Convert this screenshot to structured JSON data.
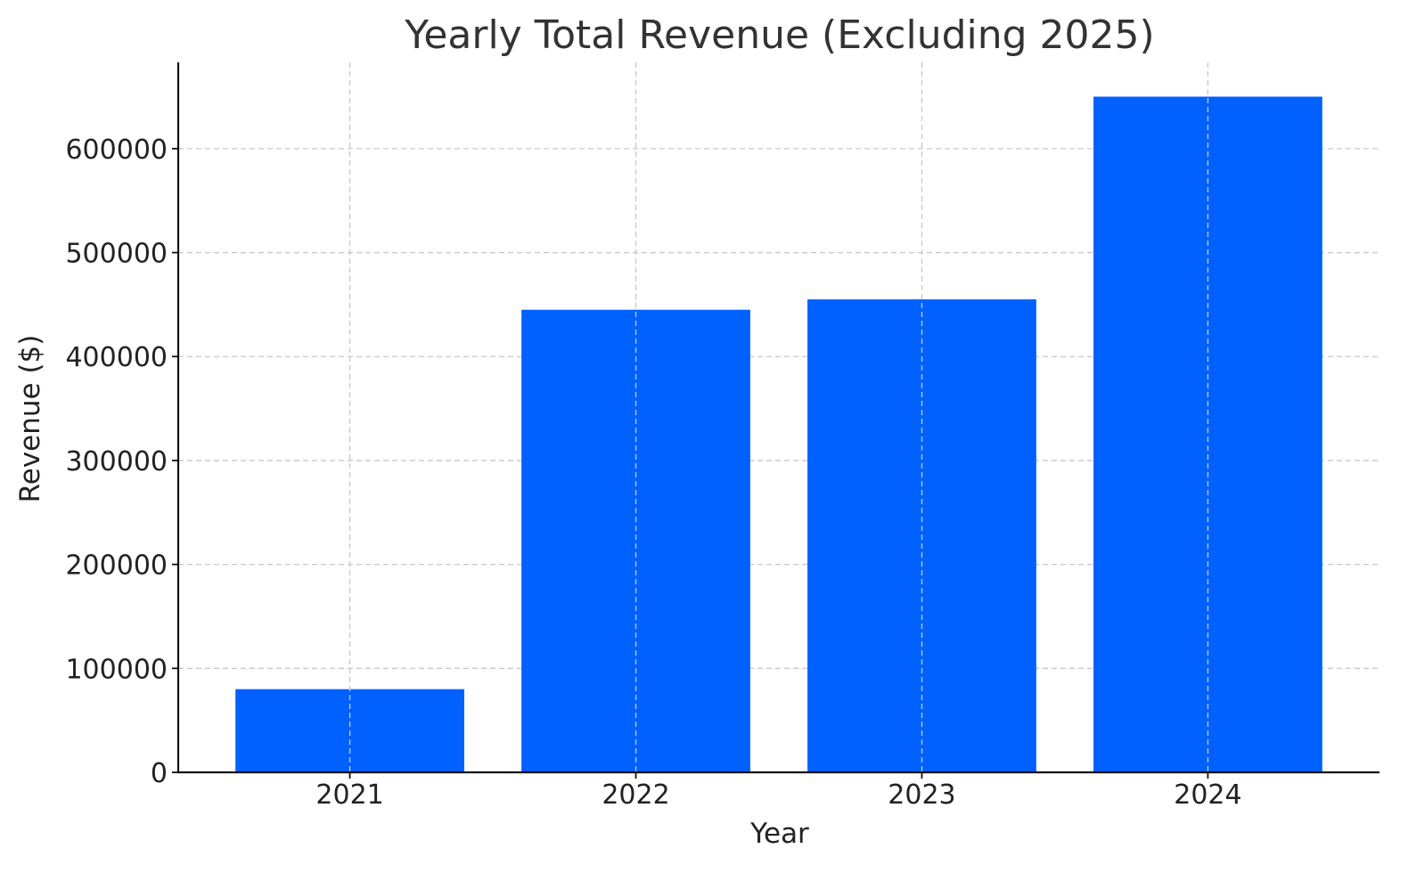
{
  "chart_data": {
    "type": "bar",
    "title": "Yearly Total Revenue (Excluding 2025)",
    "xlabel": "Year",
    "ylabel": "Revenue ($)",
    "categories": [
      "2021",
      "2022",
      "2023",
      "2024"
    ],
    "values": [
      80000,
      445000,
      455000,
      650000
    ],
    "ylim": [
      0,
      683000
    ],
    "yticks": [
      0,
      100000,
      200000,
      300000,
      400000,
      500000,
      600000
    ],
    "ytick_labels": [
      "0",
      "100000",
      "200000",
      "300000",
      "400000",
      "500000",
      "600000"
    ],
    "grid": true,
    "legend": "none",
    "colors": {
      "bar": "#0061ff",
      "grid": "#c8c8c8",
      "axis": "#111111",
      "title_text": "#333333"
    }
  }
}
